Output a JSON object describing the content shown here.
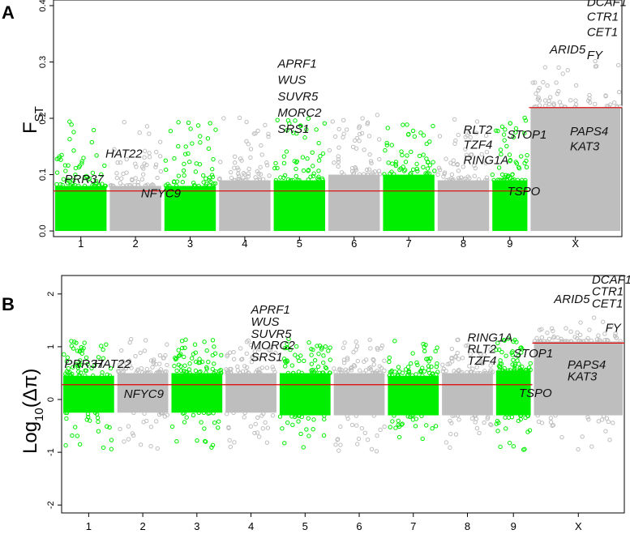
{
  "chart_data": [
    {
      "panel_label": "A",
      "type": "scatter",
      "ylabel_main": "F",
      "ylabel_sub": "ST",
      "ylim": [
        -0.01,
        0.41
      ],
      "yticks": [
        "0.0",
        "0.1",
        "0.2",
        "0.3",
        "0.4"
      ],
      "ytick_values": [
        0.0,
        0.1,
        0.2,
        0.3,
        0.4
      ],
      "chromosomes": [
        "1",
        "2",
        "3",
        "4",
        "5",
        "6",
        "7",
        "8",
        "9",
        "X"
      ],
      "chromosome_colors": [
        "#00ee00",
        "#bebebe",
        "#00ee00",
        "#bebebe",
        "#00ee00",
        "#bebebe",
        "#00ee00",
        "#bebebe",
        "#00ee00",
        "#bebebe"
      ],
      "chromosome_bounds": [
        [
          0,
          1
        ],
        [
          1,
          2
        ],
        [
          2,
          3
        ],
        [
          3,
          4
        ],
        [
          4,
          5
        ],
        [
          5,
          6
        ],
        [
          6,
          7
        ],
        [
          7,
          8
        ],
        [
          8,
          8.7
        ],
        [
          8.7,
          10.4
        ]
      ],
      "chromosome_base": [
        [
          0.0,
          0.08
        ],
        [
          0.0,
          0.08
        ],
        [
          0.0,
          0.08
        ],
        [
          0.0,
          0.09
        ],
        [
          0.0,
          0.09
        ],
        [
          0.0,
          0.1
        ],
        [
          0.0,
          0.1
        ],
        [
          0.0,
          0.09
        ],
        [
          0.0,
          0.09
        ],
        [
          0.0,
          0.22
        ]
      ],
      "threshold_autosome": 0.071,
      "threshold_x": 0.219,
      "highlight_color": "#ff0000",
      "threshold_color": "#e00000",
      "gene_labels": [
        {
          "text": "PRR37",
          "x": 0.2,
          "y": 0.085
        },
        {
          "text": "HAT22",
          "x": 0.95,
          "y": 0.13
        },
        {
          "text": "NFYC9",
          "x": 1.6,
          "y": 0.06
        },
        {
          "text": "APRF1",
          "x": 4.1,
          "y": 0.29
        },
        {
          "text": "WUS",
          "x": 4.1,
          "y": 0.261
        },
        {
          "text": "SUVR5",
          "x": 4.1,
          "y": 0.232
        },
        {
          "text": "MORC2",
          "x": 4.1,
          "y": 0.203
        },
        {
          "text": "SRS1",
          "x": 4.1,
          "y": 0.174
        },
        {
          "text": "RLT2",
          "x": 7.5,
          "y": 0.173
        },
        {
          "text": "STOP1",
          "x": 8.3,
          "y": 0.164
        },
        {
          "text": "TZF4",
          "x": 7.5,
          "y": 0.146
        },
        {
          "text": "RING1A",
          "x": 7.5,
          "y": 0.119
        },
        {
          "text": "TSPO",
          "x": 8.3,
          "y": 0.063
        },
        {
          "text": "ARID5",
          "x": 9.08,
          "y": 0.315
        },
        {
          "text": "DCAF1",
          "x": 9.76,
          "y": 0.399
        },
        {
          "text": "CTR1",
          "x": 9.76,
          "y": 0.373
        },
        {
          "text": "CET1",
          "x": 9.76,
          "y": 0.346
        },
        {
          "text": "FY",
          "x": 9.76,
          "y": 0.305
        },
        {
          "text": "PAPS4",
          "x": 9.45,
          "y": 0.17
        },
        {
          "text": "KAT3",
          "x": 9.45,
          "y": 0.143
        }
      ]
    },
    {
      "panel_label": "B",
      "type": "scatter",
      "ylabel_main": "Log",
      "ylabel_sub": "10",
      "ylabel_tail": "(Δπ)",
      "ylim": [
        -2.15,
        2.35
      ],
      "yticks": [
        "-2",
        "-1",
        "0",
        "1",
        "2"
      ],
      "ytick_values": [
        -2,
        -1,
        0,
        1,
        2
      ],
      "chromosomes": [
        "1",
        "2",
        "3",
        "4",
        "5",
        "6",
        "7",
        "8",
        "9",
        "X"
      ],
      "chromosome_colors": [
        "#00ee00",
        "#bebebe",
        "#00ee00",
        "#bebebe",
        "#00ee00",
        "#bebebe",
        "#00ee00",
        "#bebebe",
        "#00ee00",
        "#bebebe"
      ],
      "chromosome_bounds": [
        [
          0,
          1
        ],
        [
          1,
          2
        ],
        [
          2,
          3
        ],
        [
          3,
          4
        ],
        [
          4,
          5
        ],
        [
          5,
          6
        ],
        [
          6,
          7
        ],
        [
          7,
          8
        ],
        [
          8,
          8.7
        ],
        [
          8.7,
          10.4
        ]
      ],
      "chromosome_base": [
        [
          -0.25,
          0.45
        ],
        [
          -0.25,
          0.5
        ],
        [
          -0.25,
          0.5
        ],
        [
          -0.25,
          0.5
        ],
        [
          -0.3,
          0.5
        ],
        [
          -0.3,
          0.5
        ],
        [
          -0.3,
          0.45
        ],
        [
          -0.3,
          0.5
        ],
        [
          -0.3,
          0.55
        ],
        [
          -0.3,
          1.1
        ]
      ],
      "threshold_autosome": 0.28,
      "threshold_x": 1.07,
      "highlight_color": "#ff0000",
      "threshold_color": "#e00000",
      "gene_labels": [
        {
          "text": "PRR37",
          "x": 0.05,
          "y": 0.6
        },
        {
          "text": "HAT22",
          "x": 0.6,
          "y": 0.6
        },
        {
          "text": "NFYC9",
          "x": 1.15,
          "y": 0.03
        },
        {
          "text": "APRF1",
          "x": 3.5,
          "y": 1.63
        },
        {
          "text": "WUS",
          "x": 3.5,
          "y": 1.4
        },
        {
          "text": "SUVR5",
          "x": 3.5,
          "y": 1.17
        },
        {
          "text": "MORC2",
          "x": 3.5,
          "y": 0.95
        },
        {
          "text": "SRS1",
          "x": 3.5,
          "y": 0.73
        },
        {
          "text": "RING1A",
          "x": 7.5,
          "y": 1.1
        },
        {
          "text": "RLT2",
          "x": 7.5,
          "y": 0.88
        },
        {
          "text": "TZF4",
          "x": 7.5,
          "y": 0.66
        },
        {
          "text": "STOP1",
          "x": 8.35,
          "y": 0.8
        },
        {
          "text": "TSPO",
          "x": 8.45,
          "y": 0.05
        },
        {
          "text": "ARID5",
          "x": 9.1,
          "y": 1.83
        },
        {
          "text": "DCAF1",
          "x": 9.8,
          "y": 2.2
        },
        {
          "text": "CTR1",
          "x": 9.8,
          "y": 1.97
        },
        {
          "text": "CET1",
          "x": 9.8,
          "y": 1.74
        },
        {
          "text": "FY",
          "x": 10.05,
          "y": 1.28
        },
        {
          "text": "PAPS4",
          "x": 9.35,
          "y": 0.58
        },
        {
          "text": "KAT3",
          "x": 9.35,
          "y": 0.36
        }
      ]
    }
  ]
}
